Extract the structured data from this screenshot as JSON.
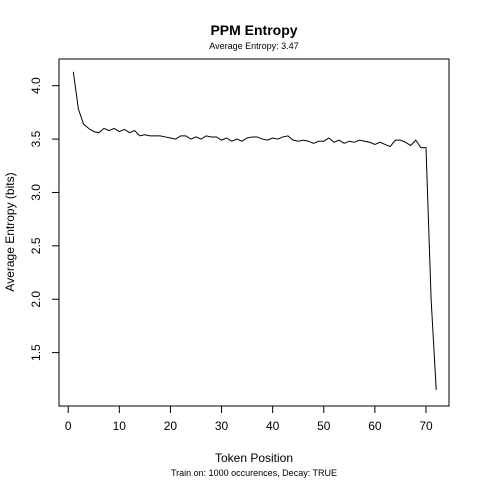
{
  "chart_data": {
    "type": "line",
    "title": "PPM Entropy",
    "subtitle": "Average Entropy: 3.47",
    "xlabel": "Token Position",
    "ylabel": "Average Entropy (bits)",
    "caption": "Train on: 1000 occurences, Decay: TRUE",
    "xlim": [
      -1.8,
      74.5
    ],
    "ylim": [
      1.0,
      4.25
    ],
    "x_ticks": [
      0,
      10,
      20,
      30,
      40,
      50,
      60,
      70
    ],
    "y_ticks": [
      1.5,
      2.0,
      2.5,
      3.0,
      3.5,
      4.0
    ],
    "y_tick_labels": [
      "1.5",
      "2.0",
      "2.5",
      "3.0",
      "3.5",
      "4.0"
    ],
    "grid": false,
    "series": [
      {
        "color": "#000000",
        "x": [
          1,
          2,
          3,
          4,
          5,
          6,
          7,
          8,
          9,
          10,
          11,
          12,
          13,
          14,
          15,
          16,
          17,
          18,
          19,
          20,
          21,
          22,
          23,
          24,
          25,
          26,
          27,
          28,
          29,
          30,
          31,
          32,
          33,
          34,
          35,
          36,
          37,
          38,
          39,
          40,
          41,
          42,
          43,
          44,
          45,
          46,
          47,
          48,
          49,
          50,
          51,
          52,
          53,
          54,
          55,
          56,
          57,
          58,
          59,
          60,
          61,
          62,
          63,
          64,
          65,
          66,
          67,
          68,
          69,
          70,
          71,
          72
        ],
        "y": [
          4.13,
          3.78,
          3.64,
          3.6,
          3.57,
          3.56,
          3.6,
          3.58,
          3.6,
          3.57,
          3.59,
          3.56,
          3.58,
          3.53,
          3.54,
          3.53,
          3.53,
          3.53,
          3.52,
          3.51,
          3.5,
          3.53,
          3.53,
          3.5,
          3.52,
          3.5,
          3.53,
          3.52,
          3.52,
          3.49,
          3.51,
          3.48,
          3.5,
          3.48,
          3.51,
          3.52,
          3.52,
          3.5,
          3.49,
          3.51,
          3.5,
          3.52,
          3.53,
          3.49,
          3.48,
          3.49,
          3.48,
          3.46,
          3.48,
          3.48,
          3.51,
          3.47,
          3.49,
          3.46,
          3.48,
          3.47,
          3.49,
          3.48,
          3.47,
          3.45,
          3.47,
          3.45,
          3.43,
          3.49,
          3.49,
          3.47,
          3.44,
          3.49,
          3.42,
          3.42,
          2.0,
          1.15
        ]
      }
    ]
  }
}
